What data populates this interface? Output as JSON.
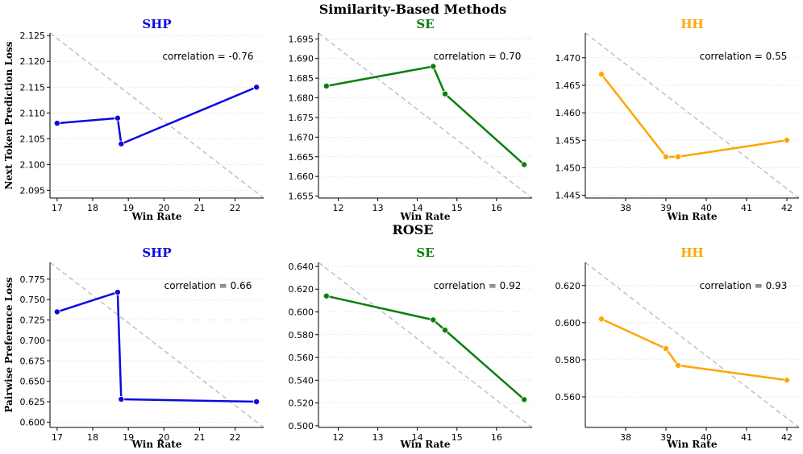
{
  "figure": {
    "sections": [
      {
        "title": "Similarity-Based Methods"
      },
      {
        "title": "ROSE"
      }
    ]
  },
  "chart_data": [
    {
      "type": "line",
      "section": 0,
      "col": 0,
      "title": "SHP",
      "color": "#0a0adf",
      "xlabel": "Win Rate",
      "ylabel": "Next Token Prediction Loss",
      "annotation": "correlation = -0.76",
      "x": [
        17.0,
        18.7,
        18.8,
        22.6
      ],
      "y": [
        2.108,
        2.109,
        2.104,
        2.115
      ],
      "xlim": [
        16.8,
        22.8
      ],
      "ylim": [
        2.0935,
        2.1255
      ],
      "xticks": [
        17,
        18,
        19,
        20,
        21,
        22
      ],
      "xtick_labels": [
        "17",
        "18",
        "19",
        "20",
        "21",
        "22"
      ],
      "yticks": [
        2.095,
        2.1,
        2.105,
        2.11,
        2.115,
        2.12,
        2.125
      ],
      "ytick_labels": [
        "2.095",
        "2.100",
        "2.105",
        "2.110",
        "2.115",
        "2.120",
        "2.125"
      ]
    },
    {
      "type": "line",
      "section": 0,
      "col": 1,
      "title": "SE",
      "color": "#0a7f0a",
      "xlabel": "Win Rate",
      "ylabel": "",
      "annotation": "correlation = 0.70",
      "x": [
        11.7,
        14.4,
        14.7,
        16.7
      ],
      "y": [
        1.683,
        1.688,
        1.681,
        1.663
      ],
      "xlim": [
        11.5,
        16.9
      ],
      "ylim": [
        1.6545,
        1.6965
      ],
      "xticks": [
        12,
        13,
        14,
        15,
        16
      ],
      "xtick_labels": [
        "12",
        "13",
        "14",
        "15",
        "16"
      ],
      "yticks": [
        1.655,
        1.66,
        1.665,
        1.67,
        1.675,
        1.68,
        1.685,
        1.69,
        1.695
      ],
      "ytick_labels": [
        "1.655",
        "1.660",
        "1.665",
        "1.670",
        "1.675",
        "1.680",
        "1.685",
        "1.690",
        "1.695"
      ]
    },
    {
      "type": "line",
      "section": 0,
      "col": 2,
      "title": "HH",
      "color": "#ffa500",
      "xlabel": "Win Rate",
      "ylabel": "",
      "annotation": "correlation = 0.55",
      "x": [
        37.4,
        39.0,
        39.3,
        42.0
      ],
      "y": [
        1.467,
        1.452,
        1.452,
        1.455
      ],
      "xlim": [
        37.0,
        42.3
      ],
      "ylim": [
        1.4445,
        1.4745
      ],
      "xticks": [
        38,
        39,
        40,
        41,
        42
      ],
      "xtick_labels": [
        "38",
        "39",
        "40",
        "41",
        "42"
      ],
      "yticks": [
        1.445,
        1.45,
        1.455,
        1.46,
        1.465,
        1.47
      ],
      "ytick_labels": [
        "1.445",
        "1.450",
        "1.455",
        "1.460",
        "1.465",
        "1.470"
      ]
    },
    {
      "type": "line",
      "section": 1,
      "col": 0,
      "title": "SHP",
      "color": "#0a0adf",
      "xlabel": "Win Rate",
      "ylabel": "Pairwise Preference Loss",
      "annotation": "correlation = 0.66",
      "x": [
        17.0,
        18.7,
        18.8,
        22.6
      ],
      "y": [
        0.735,
        0.759,
        0.628,
        0.625
      ],
      "xlim": [
        16.8,
        22.8
      ],
      "ylim": [
        0.5935,
        0.7955
      ],
      "xticks": [
        17,
        18,
        19,
        20,
        21,
        22
      ],
      "xtick_labels": [
        "17",
        "18",
        "19",
        "20",
        "21",
        "22"
      ],
      "yticks": [
        0.6,
        0.625,
        0.65,
        0.675,
        0.7,
        0.725,
        0.75,
        0.775
      ],
      "ytick_labels": [
        "0.600",
        "0.625",
        "0.650",
        "0.675",
        "0.700",
        "0.725",
        "0.750",
        "0.775"
      ]
    },
    {
      "type": "line",
      "section": 1,
      "col": 1,
      "title": "SE",
      "color": "#0a7f0a",
      "xlabel": "Win Rate",
      "ylabel": "",
      "annotation": "correlation = 0.92",
      "x": [
        11.7,
        14.4,
        14.7,
        16.7
      ],
      "y": [
        0.614,
        0.593,
        0.584,
        0.523
      ],
      "xlim": [
        11.5,
        16.9
      ],
      "ylim": [
        0.4985,
        0.6435
      ],
      "xticks": [
        12,
        13,
        14,
        15,
        16
      ],
      "xtick_labels": [
        "12",
        "13",
        "14",
        "15",
        "16"
      ],
      "yticks": [
        0.5,
        0.52,
        0.54,
        0.56,
        0.58,
        0.6,
        0.62,
        0.64
      ],
      "ytick_labels": [
        "0.500",
        "0.520",
        "0.540",
        "0.560",
        "0.580",
        "0.600",
        "0.620",
        "0.640"
      ]
    },
    {
      "type": "line",
      "section": 1,
      "col": 2,
      "title": "HH",
      "color": "#ffa500",
      "xlabel": "Win Rate",
      "ylabel": "",
      "annotation": "correlation = 0.93",
      "x": [
        37.4,
        39.0,
        39.3,
        42.0
      ],
      "y": [
        0.602,
        0.586,
        0.577,
        0.569
      ],
      "xlim": [
        37.0,
        42.3
      ],
      "ylim": [
        0.5435,
        0.6325
      ],
      "xticks": [
        38,
        39,
        40,
        41,
        42
      ],
      "xtick_labels": [
        "38",
        "39",
        "40",
        "41",
        "42"
      ],
      "yticks": [
        0.56,
        0.58,
        0.6,
        0.62
      ],
      "ytick_labels": [
        "0.560",
        "0.580",
        "0.600",
        "0.620"
      ]
    }
  ]
}
